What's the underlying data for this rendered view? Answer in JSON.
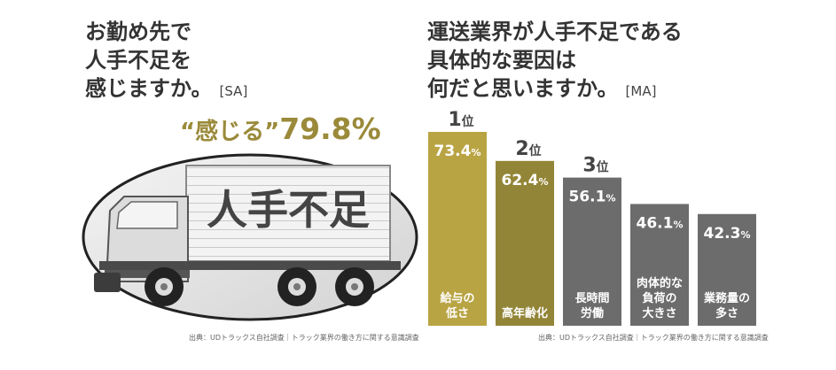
{
  "left": {
    "question_lines": [
      "お勤め先で",
      "人手不足を",
      "感じますか。"
    ],
    "tag": "[SA]",
    "result_quote": "“感じる”",
    "result_value": "79.8%",
    "truck_text": "人手不足",
    "source": "出典：UDトラックス自社調査｜トラック業界の働き方に関する意識調査"
  },
  "right": {
    "question_lines": [
      "運送業界が人手不足である",
      "具体的な要因は",
      "何だと思いますか。"
    ],
    "tag": "[MA]",
    "source": "出典：UDトラックス自社調査｜トラック業界の働き方に関する意識調査"
  },
  "colors": {
    "gold": "#b9a444",
    "olive": "#928537",
    "gray": "#6c6c6c",
    "accent_text": "#9a8a3a"
  },
  "chart_data": {
    "type": "bar",
    "categories": [
      "給与の低さ",
      "高年齢化",
      "長時間労働",
      "肉体的な負荷の大きさ",
      "業務量の多さ"
    ],
    "values": [
      73.4,
      62.4,
      56.1,
      46.1,
      42.3
    ],
    "value_labels": [
      "73.4%",
      "62.4%",
      "56.1%",
      "46.1%",
      "42.3%"
    ],
    "label_lines": [
      [
        "給与の",
        "低さ"
      ],
      [
        "高年齢化"
      ],
      [
        "長時間",
        "労働"
      ],
      [
        "肉体的な",
        "負荷の",
        "大きさ"
      ],
      [
        "業務量の",
        "多さ"
      ]
    ],
    "ranks": [
      "1位",
      "2位",
      "3位",
      "",
      ""
    ],
    "title": "",
    "xlabel": "",
    "ylabel": "",
    "ylim": [
      0,
      73.4
    ],
    "grid": false
  }
}
